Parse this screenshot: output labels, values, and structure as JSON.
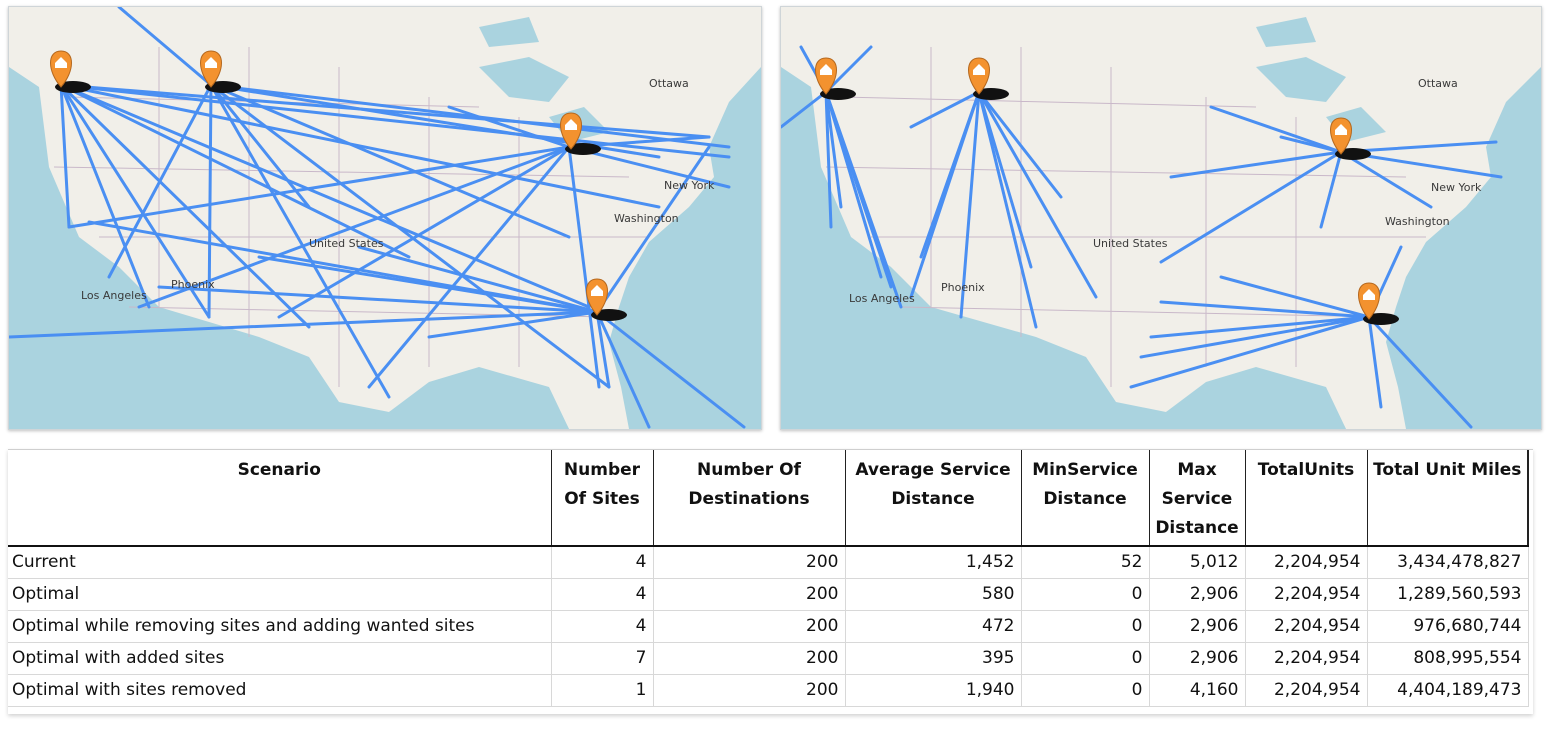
{
  "colors": {
    "route": "#4a8ff2",
    "land": "#f1efe9",
    "water": "#aad3df",
    "marker": "#f3922f"
  },
  "maps": [
    {
      "name": "left",
      "labels": {
        "ottawa": "Ottawa",
        "new_york": "New York",
        "washington": "Washington",
        "united_states": "United States",
        "los_angeles": "Los Angeles",
        "phoenix": "Phoenix"
      }
    },
    {
      "name": "right",
      "labels": {
        "ottawa": "Ottawa",
        "new_york": "New York",
        "washington": "Washington",
        "united_states": "United States",
        "los_angeles": "Los Angeles",
        "phoenix": "Phoenix"
      }
    }
  ],
  "table": {
    "columns": [
      "Scenario",
      "Number Of Sites",
      "Number Of Destinations",
      "Average Service Distance",
      "MinService Distance",
      "Max Service Distance",
      "TotalUnits",
      "Total Unit Miles"
    ],
    "rows": [
      [
        "Current",
        "4",
        "200",
        "1,452",
        "52",
        "5,012",
        "2,204,954",
        "3,434,478,827"
      ],
      [
        "Optimal",
        "4",
        "200",
        "580",
        "0",
        "2,906",
        "2,204,954",
        "1,289,560,593"
      ],
      [
        "Optimal while removing sites and adding wanted sites",
        "4",
        "200",
        "472",
        "0",
        "2,906",
        "2,204,954",
        "976,680,744"
      ],
      [
        "Optimal with added sites",
        "7",
        "200",
        "395",
        "0",
        "2,906",
        "2,204,954",
        "808,995,554"
      ],
      [
        "Optimal with sites removed",
        "1",
        "200",
        "1,940",
        "0",
        "4,160",
        "2,204,954",
        "4,404,189,473"
      ]
    ]
  }
}
